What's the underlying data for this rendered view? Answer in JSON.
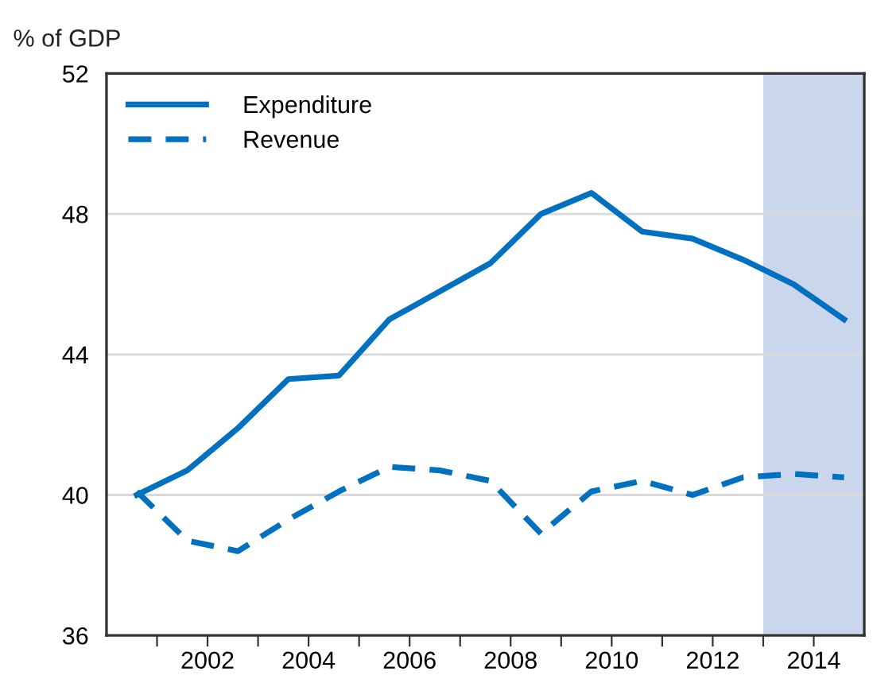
{
  "chart_data": {
    "type": "line",
    "ylabel": "% of GDP",
    "x": [
      2000.6,
      2001.6,
      2002.6,
      2003.6,
      2004.6,
      2005.6,
      2006.6,
      2007.6,
      2008.6,
      2009.6,
      2010.6,
      2011.6,
      2012.6,
      2013.6,
      2014.6
    ],
    "series": [
      {
        "name": "Expenditure",
        "color": "#0070c0",
        "line_style": "solid",
        "values": [
          40.0,
          40.7,
          41.9,
          43.3,
          43.4,
          45.0,
          45.8,
          46.6,
          48.0,
          48.6,
          47.5,
          47.3,
          46.7,
          46.0,
          45.0
        ]
      },
      {
        "name": "Revenue",
        "color": "#0070c0",
        "line_style": "dashed",
        "values": [
          40.1,
          38.7,
          38.4,
          39.3,
          40.1,
          40.8,
          40.7,
          40.4,
          38.9,
          40.1,
          40.4,
          40.0,
          40.5,
          40.6,
          40.5
        ]
      }
    ],
    "xlim": [
      2000,
      2015
    ],
    "xticks": [
      {
        "value": 2001,
        "label": null
      },
      2002,
      {
        "value": 2003,
        "label": null
      },
      2004,
      {
        "value": 2005,
        "label": null
      },
      2006,
      {
        "value": 2007,
        "label": null
      },
      2008,
      {
        "value": 2009,
        "label": null
      },
      2010,
      {
        "value": 2011,
        "label": null
      },
      2012,
      {
        "value": 2013,
        "label": null
      },
      2014
    ],
    "ylim": [
      36,
      52
    ],
    "yticks": [
      36,
      40,
      44,
      48,
      52
    ],
    "bands": [
      {
        "axis": "x",
        "from": 2013,
        "to": 2015,
        "color": "#c9d6ec"
      }
    ],
    "grid": "y",
    "legend": "top left",
    "marker": "none"
  }
}
